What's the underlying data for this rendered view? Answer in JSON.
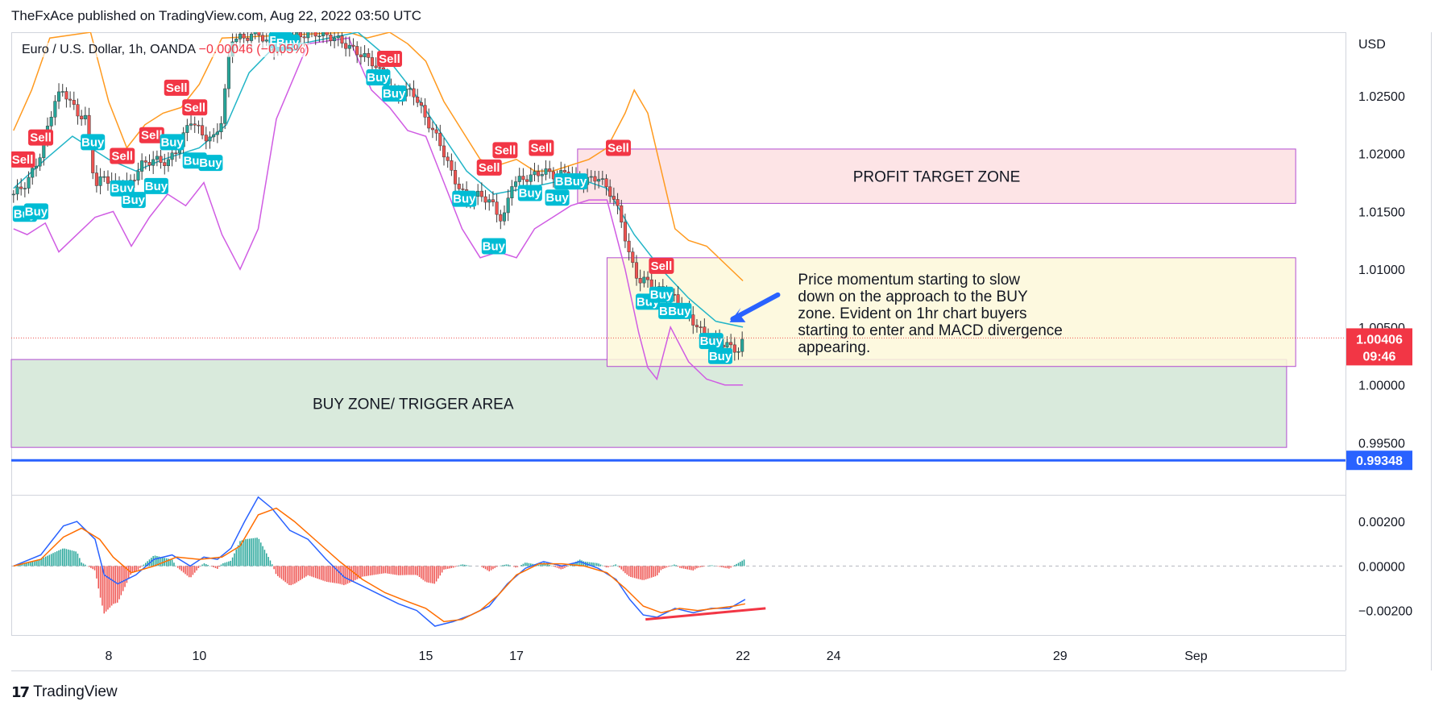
{
  "header": {
    "text": "TheFxAce published on TradingView.com, Aug 22, 2022 03:50 UTC"
  },
  "legend": {
    "symbol": "Euro / U.S. Dollar, 1h, OANDA",
    "change": "−0.00046 (−0.05%)"
  },
  "footer": {
    "brand": "TradingView"
  },
  "colors": {
    "up": "#26a69a",
    "down": "#ef5350",
    "ema": "#22b5c7",
    "upper_band": "#ff9a1f",
    "lower_band": "#d05ce3",
    "macd": "#2962ff",
    "signal": "#ff6d00",
    "buy": "#00bcd4",
    "sell": "#f23645",
    "support": "#2962ff",
    "profit_zone": "#fde4e6",
    "buy_zone": "#d9eadc",
    "note_box": "#fdf8d9"
  },
  "chart_data": {
    "type": "candlestick",
    "currency": "USD",
    "y_ticks": [
      "1.02500",
      "1.02000",
      "1.01500",
      "1.01000",
      "1.00500",
      "1.00000",
      "0.99500"
    ],
    "y_tick_values": [
      1.025,
      1.02,
      1.015,
      1.01,
      1.005,
      1.0,
      0.995
    ],
    "x_ticks": [
      "8",
      "10",
      "15",
      "17",
      "22",
      "24",
      "29",
      "Sep"
    ],
    "x_tick_days": [
      8,
      10,
      15,
      17,
      22,
      24,
      29,
      32
    ],
    "x_range_days": [
      5.85,
      35.3
    ],
    "y_range": [
      0.9905,
      1.0305
    ],
    "close_path": [
      [
        5.9,
        1.0165
      ],
      [
        6.2,
        1.0175
      ],
      [
        6.5,
        1.02
      ],
      [
        6.8,
        1.0245
      ],
      [
        7.0,
        1.0255
      ],
      [
        7.3,
        1.0235
      ],
      [
        7.5,
        1.023
      ],
      [
        7.7,
        1.0172
      ],
      [
        7.9,
        1.018
      ],
      [
        8.2,
        1.0172
      ],
      [
        8.5,
        1.0175
      ],
      [
        8.7,
        1.019
      ],
      [
        9.0,
        1.0195
      ],
      [
        9.3,
        1.0192
      ],
      [
        9.6,
        1.021
      ],
      [
        9.8,
        1.023
      ],
      [
        10.1,
        1.0215
      ],
      [
        10.3,
        1.0212
      ],
      [
        10.5,
        1.023
      ],
      [
        10.7,
        1.03
      ],
      [
        11.0,
        1.03
      ],
      [
        11.3,
        1.0305
      ],
      [
        11.6,
        1.029
      ],
      [
        12.0,
        1.03
      ],
      [
        12.5,
        1.0305
      ],
      [
        13.0,
        1.03
      ],
      [
        13.4,
        1.029
      ],
      [
        13.8,
        1.028
      ],
      [
        14.1,
        1.0265
      ],
      [
        14.3,
        1.025
      ],
      [
        14.7,
        1.0255
      ],
      [
        15.0,
        1.023
      ],
      [
        15.3,
        1.021
      ],
      [
        15.6,
        1.018
      ],
      [
        15.9,
        1.016
      ],
      [
        16.2,
        1.0165
      ],
      [
        16.5,
        1.0155
      ],
      [
        16.7,
        1.014
      ],
      [
        16.9,
        1.0175
      ],
      [
        17.3,
        1.018
      ],
      [
        17.6,
        1.0185
      ],
      [
        17.9,
        1.018
      ],
      [
        18.1,
        1.0185
      ],
      [
        18.4,
        1.0175
      ],
      [
        18.8,
        1.018
      ],
      [
        19.1,
        1.0165
      ],
      [
        19.3,
        1.0145
      ],
      [
        19.5,
        1.011
      ],
      [
        19.7,
        1.009
      ],
      [
        19.9,
        1.009
      ],
      [
        20.2,
        1.008
      ],
      [
        20.5,
        1.0075
      ],
      [
        20.8,
        1.006
      ],
      [
        21.2,
        1.004
      ],
      [
        21.6,
        1.0035
      ],
      [
        21.9,
        1.003
      ],
      [
        22.05,
        1.0041
      ]
    ],
    "ema_path": [
      [
        5.9,
        1.017
      ],
      [
        6.6,
        1.0195
      ],
      [
        7.2,
        1.0215
      ],
      [
        8.0,
        1.0195
      ],
      [
        8.6,
        1.0185
      ],
      [
        9.2,
        1.0195
      ],
      [
        10.0,
        1.0205
      ],
      [
        10.6,
        1.0225
      ],
      [
        11.1,
        1.027
      ],
      [
        11.6,
        1.029
      ],
      [
        13.5,
        1.0305
      ],
      [
        14.1,
        1.0285
      ],
      [
        14.7,
        1.0255
      ],
      [
        15.3,
        1.022
      ],
      [
        15.9,
        1.0185
      ],
      [
        16.5,
        1.0165
      ],
      [
        17.2,
        1.017
      ],
      [
        17.8,
        1.0175
      ],
      [
        18.4,
        1.0178
      ],
      [
        19.0,
        1.017
      ],
      [
        19.6,
        1.013
      ],
      [
        20.2,
        1.01
      ],
      [
        20.8,
        1.0075
      ],
      [
        21.4,
        1.0055
      ],
      [
        22.0,
        1.005
      ]
    ],
    "upper_band_path": [
      [
        5.9,
        1.022
      ],
      [
        6.3,
        1.0255
      ],
      [
        6.7,
        1.03
      ],
      [
        7.6,
        1.0305
      ],
      [
        8.0,
        1.0245
      ],
      [
        8.4,
        1.0205
      ],
      [
        8.8,
        1.0225
      ],
      [
        9.2,
        1.0235
      ],
      [
        9.6,
        1.024
      ],
      [
        10.0,
        1.026
      ],
      [
        10.5,
        1.03
      ],
      [
        13.3,
        1.0305
      ],
      [
        13.7,
        1.03
      ],
      [
        14.2,
        1.0305
      ],
      [
        14.6,
        1.0295
      ],
      [
        15.0,
        1.028
      ],
      [
        15.4,
        1.0245
      ],
      [
        15.8,
        1.022
      ],
      [
        16.2,
        1.0195
      ],
      [
        16.6,
        1.019
      ],
      [
        17.0,
        1.0195
      ],
      [
        17.4,
        1.0185
      ],
      [
        17.8,
        1.0185
      ],
      [
        18.2,
        1.019
      ],
      [
        18.6,
        1.0195
      ],
      [
        19.0,
        1.0205
      ],
      [
        19.4,
        1.0235
      ],
      [
        19.6,
        1.0255
      ],
      [
        19.9,
        1.0235
      ],
      [
        20.2,
        1.0185
      ],
      [
        20.5,
        1.0135
      ],
      [
        20.8,
        1.0125
      ],
      [
        21.2,
        1.012
      ],
      [
        21.6,
        1.0105
      ],
      [
        22.0,
        1.009
      ]
    ],
    "lower_band_path": [
      [
        5.9,
        1.0135
      ],
      [
        6.2,
        1.013
      ],
      [
        6.6,
        1.014
      ],
      [
        6.9,
        1.0115
      ],
      [
        7.3,
        1.013
      ],
      [
        7.7,
        1.0145
      ],
      [
        8.1,
        1.015
      ],
      [
        8.5,
        1.012
      ],
      [
        8.9,
        1.0145
      ],
      [
        9.3,
        1.0165
      ],
      [
        9.7,
        1.0155
      ],
      [
        10.1,
        1.0175
      ],
      [
        10.5,
        1.013
      ],
      [
        10.9,
        1.01
      ],
      [
        11.3,
        1.0135
      ],
      [
        11.7,
        1.023
      ],
      [
        12.4,
        1.0295
      ],
      [
        13.3,
        1.03
      ],
      [
        13.8,
        1.0255
      ],
      [
        14.2,
        1.024
      ],
      [
        14.6,
        1.022
      ],
      [
        15.0,
        1.0215
      ],
      [
        15.4,
        1.0175
      ],
      [
        15.8,
        1.0135
      ],
      [
        16.2,
        1.011
      ],
      [
        16.6,
        1.0115
      ],
      [
        17.0,
        1.011
      ],
      [
        17.4,
        1.0135
      ],
      [
        17.8,
        1.0145
      ],
      [
        18.2,
        1.0155
      ],
      [
        18.6,
        1.016
      ],
      [
        19.0,
        1.016
      ],
      [
        19.4,
        1.01
      ],
      [
        19.7,
        1.0045
      ],
      [
        19.9,
        1.0015
      ],
      [
        20.1,
        1.0005
      ],
      [
        20.4,
        1.005
      ],
      [
        20.8,
        1.002
      ],
      [
        21.2,
        1.0005
      ],
      [
        21.6,
        1.0
      ],
      [
        22.0,
        1.0
      ]
    ],
    "signals": [
      {
        "label": "Sell",
        "day": 6.1,
        "price": 1.0195
      },
      {
        "label": "Sell",
        "day": 6.5,
        "price": 1.0214
      },
      {
        "label": "Buy",
        "day": 6.15,
        "price": 1.0148
      },
      {
        "label": "Buy",
        "day": 6.4,
        "price": 1.015
      },
      {
        "label": "Buy",
        "day": 7.65,
        "price": 1.021
      },
      {
        "label": "Sell",
        "day": 8.3,
        "price": 1.0198
      },
      {
        "label": "Buy",
        "day": 8.3,
        "price": 1.017
      },
      {
        "label": "Buy",
        "day": 8.55,
        "price": 1.016
      },
      {
        "label": "Sell",
        "day": 8.95,
        "price": 1.0216
      },
      {
        "label": "Buy",
        "day": 9.05,
        "price": 1.0172
      },
      {
        "label": "Sell",
        "day": 9.5,
        "price": 1.0257
      },
      {
        "label": "Buy",
        "day": 9.4,
        "price": 1.021
      },
      {
        "label": "Sell",
        "day": 9.9,
        "price": 1.024
      },
      {
        "label": "Buy",
        "day": 9.9,
        "price": 1.0194
      },
      {
        "label": "Buy",
        "day": 10.25,
        "price": 1.0192
      },
      {
        "label": "Buy",
        "day": 11.8,
        "price": 1.0298
      },
      {
        "label": "Buy",
        "day": 11.95,
        "price": 1.0296
      },
      {
        "label": "Sell",
        "day": 14.2,
        "price": 1.0282
      },
      {
        "label": "Buy",
        "day": 13.95,
        "price": 1.0266
      },
      {
        "label": "Buy",
        "day": 14.3,
        "price": 1.0252
      },
      {
        "label": "Sell",
        "day": 16.4,
        "price": 1.0188
      },
      {
        "label": "Buy",
        "day": 15.85,
        "price": 1.0161
      },
      {
        "label": "Sell",
        "day": 16.75,
        "price": 1.0203
      },
      {
        "label": "Buy",
        "day": 16.5,
        "price": 1.012
      },
      {
        "label": "Buy",
        "day": 17.3,
        "price": 1.0166
      },
      {
        "label": "Sell",
        "day": 17.55,
        "price": 1.0205
      },
      {
        "label": "Buy",
        "day": 17.9,
        "price": 1.0162
      },
      {
        "label": "Buy",
        "day": 18.1,
        "price": 1.0176
      },
      {
        "label": "Buy",
        "day": 18.3,
        "price": 1.0176
      },
      {
        "label": "Sell",
        "day": 19.25,
        "price": 1.0205
      },
      {
        "label": "Sell",
        "day": 20.2,
        "price": 1.0103
      },
      {
        "label": "Buy",
        "day": 19.9,
        "price": 1.0072
      },
      {
        "label": "Buy",
        "day": 20.2,
        "price": 1.0078
      },
      {
        "label": "Buy",
        "day": 20.4,
        "price": 1.0064
      },
      {
        "label": "Buy",
        "day": 20.6,
        "price": 1.0064
      },
      {
        "label": "Buy",
        "day": 21.3,
        "price": 1.0038
      },
      {
        "label": "Buy",
        "day": 21.5,
        "price": 1.0025
      }
    ],
    "zones": {
      "profit_target": {
        "label": "PROFIT TARGET ZONE",
        "day_from": 18.35,
        "day_to": 34.2,
        "price_low": 1.0157,
        "price_high": 1.0204
      },
      "buy_zone": {
        "label": "BUY ZONE/ TRIGGER AREA",
        "day_from": 5.85,
        "day_to": 34.0,
        "price_low": 0.9946,
        "price_high": 1.0022
      },
      "note_box": {
        "day_from": 19.0,
        "day_to": 34.2,
        "price_low": 1.0016,
        "price_high": 1.011,
        "text": [
          "Price momentum starting to slow",
          "down on the approach to the BUY",
          "zone. Evident on 1hr chart buyers",
          "starting to enter and MACD divergence",
          "appearing."
        ]
      }
    },
    "last_price": {
      "price": "1.00406",
      "countdown": "09:46",
      "value": 1.00406
    },
    "support_level": {
      "price": "0.99348",
      "value": 0.99348
    },
    "macd_pane": {
      "y_ticks": [
        "0.00200",
        "0.00000",
        "−0.00200"
      ],
      "y_tick_values": [
        0.002,
        0.0,
        -0.002
      ],
      "y_range": [
        -0.0031,
        0.0032
      ],
      "macd_path": [
        [
          5.9,
          0.0
        ],
        [
          6.5,
          0.0005
        ],
        [
          7.0,
          0.0018
        ],
        [
          7.3,
          0.002
        ],
        [
          7.7,
          0.0012
        ],
        [
          7.9,
          -0.0004
        ],
        [
          8.2,
          -0.0008
        ],
        [
          8.6,
          -0.0004
        ],
        [
          9.0,
          0.0003
        ],
        [
          9.4,
          0.0005
        ],
        [
          9.8,
          0.0
        ],
        [
          10.1,
          0.0004
        ],
        [
          10.4,
          0.0003
        ],
        [
          10.7,
          0.0008
        ],
        [
          11.0,
          0.002
        ],
        [
          11.3,
          0.0031
        ],
        [
          11.6,
          0.0026
        ],
        [
          12.0,
          0.0016
        ],
        [
          12.4,
          0.0012
        ],
        [
          12.8,
          0.0003
        ],
        [
          13.2,
          -0.0005
        ],
        [
          13.6,
          -0.0009
        ],
        [
          14.0,
          -0.0013
        ],
        [
          14.4,
          -0.0017
        ],
        [
          14.8,
          -0.002
        ],
        [
          15.2,
          -0.0027
        ],
        [
          15.6,
          -0.0025
        ],
        [
          16.0,
          -0.0022
        ],
        [
          16.4,
          -0.0018
        ],
        [
          16.8,
          -0.0008
        ],
        [
          17.2,
          -0.0001
        ],
        [
          17.6,
          0.0002
        ],
        [
          18.0,
          0.0
        ],
        [
          18.4,
          0.0002
        ],
        [
          18.8,
          -0.0001
        ],
        [
          19.2,
          -0.0006
        ],
        [
          19.5,
          -0.0015
        ],
        [
          19.8,
          -0.0022
        ],
        [
          20.1,
          -0.0023
        ],
        [
          20.5,
          -0.0019
        ],
        [
          20.9,
          -0.0021
        ],
        [
          21.3,
          -0.0019
        ],
        [
          21.7,
          -0.0019
        ],
        [
          22.05,
          -0.0015
        ]
      ],
      "signal_path": [
        [
          5.9,
          0.0
        ],
        [
          6.5,
          0.0003
        ],
        [
          7.0,
          0.0013
        ],
        [
          7.4,
          0.0017
        ],
        [
          7.8,
          0.0012
        ],
        [
          8.1,
          0.0004
        ],
        [
          8.5,
          -0.0003
        ],
        [
          9.0,
          0.0
        ],
        [
          9.5,
          0.0004
        ],
        [
          10.0,
          0.0003
        ],
        [
          10.5,
          0.0004
        ],
        [
          10.9,
          0.0009
        ],
        [
          11.3,
          0.0023
        ],
        [
          11.7,
          0.0026
        ],
        [
          12.1,
          0.002
        ],
        [
          12.6,
          0.0011
        ],
        [
          13.1,
          0.0002
        ],
        [
          13.6,
          -0.0006
        ],
        [
          14.1,
          -0.0012
        ],
        [
          14.6,
          -0.0016
        ],
        [
          15.0,
          -0.0019
        ],
        [
          15.4,
          -0.0025
        ],
        [
          15.8,
          -0.0024
        ],
        [
          16.2,
          -0.002
        ],
        [
          16.6,
          -0.0013
        ],
        [
          17.0,
          -0.0004
        ],
        [
          17.5,
          0.0001
        ],
        [
          18.0,
          0.0001
        ],
        [
          18.5,
          0.0
        ],
        [
          19.0,
          -0.0003
        ],
        [
          19.4,
          -0.001
        ],
        [
          19.8,
          -0.0018
        ],
        [
          20.2,
          -0.0021
        ],
        [
          20.6,
          -0.0019
        ],
        [
          21.0,
          -0.002
        ],
        [
          21.4,
          -0.0019
        ],
        [
          21.8,
          -0.0018
        ],
        [
          22.05,
          -0.0017
        ]
      ],
      "divergence_line": [
        [
          19.85,
          -0.0024
        ],
        [
          22.5,
          -0.0019
        ]
      ]
    }
  }
}
